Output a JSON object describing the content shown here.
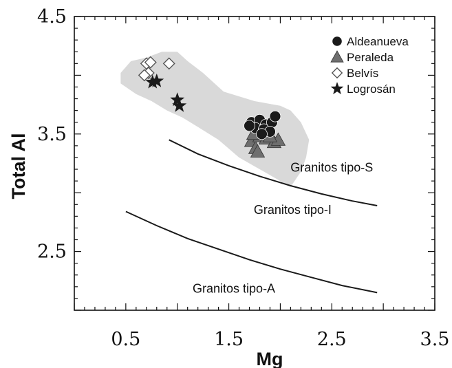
{
  "chart_data": {
    "type": "scatter",
    "xlabel": "Mg",
    "ylabel": "Total Al",
    "xlim": [
      0,
      3.5
    ],
    "ylim": [
      2.0,
      4.5
    ],
    "x_tick_labels": [
      "0.5",
      "1.5",
      "2.5",
      "3.5"
    ],
    "y_tick_labels": [
      "2.5",
      "3.5",
      "4.5"
    ],
    "grid": false,
    "legend_position": "top-right",
    "colors": {
      "shade": "#d9d9d9",
      "marker": "#1a1a1a",
      "outline_marker": "#ffffff",
      "line": "#1a1a1a"
    },
    "series": [
      {
        "name": "Aldeanueva",
        "marker": "circle",
        "points": [
          [
            1.72,
            3.6
          ],
          [
            1.8,
            3.62
          ],
          [
            1.86,
            3.58
          ],
          [
            1.76,
            3.55
          ],
          [
            1.84,
            3.54
          ],
          [
            1.92,
            3.6
          ],
          [
            1.95,
            3.65
          ],
          [
            1.9,
            3.52
          ],
          [
            1.7,
            3.57
          ],
          [
            1.82,
            3.5
          ]
        ]
      },
      {
        "name": "Peraleda",
        "marker": "triangle",
        "points": [
          [
            1.72,
            3.44
          ],
          [
            1.76,
            3.38
          ],
          [
            1.8,
            3.48
          ],
          [
            1.86,
            3.46
          ],
          [
            1.94,
            3.43
          ],
          [
            1.98,
            3.45
          ],
          [
            1.74,
            3.5
          ],
          [
            1.9,
            3.48
          ],
          [
            1.78,
            3.35
          ]
        ]
      },
      {
        "name": "Belvís",
        "marker": "diamond-open",
        "points": [
          [
            0.7,
            4.1
          ],
          [
            0.74,
            4.11
          ],
          [
            0.92,
            4.1
          ],
          [
            0.72,
            4.02
          ],
          [
            0.68,
            4.0
          ]
        ]
      },
      {
        "name": "Logrosán",
        "marker": "star",
        "points": [
          [
            0.76,
            3.94
          ],
          [
            0.8,
            3.95
          ],
          [
            1.0,
            3.79
          ],
          [
            1.02,
            3.74
          ]
        ]
      }
    ],
    "shaded_region": {
      "label": "",
      "polygon": [
        [
          0.45,
          4.02
        ],
        [
          0.55,
          4.12
        ],
        [
          0.7,
          4.15
        ],
        [
          0.85,
          4.2
        ],
        [
          1.0,
          4.2
        ],
        [
          1.1,
          4.12
        ],
        [
          1.25,
          4.02
        ],
        [
          1.45,
          3.86
        ],
        [
          1.75,
          3.78
        ],
        [
          2.0,
          3.74
        ],
        [
          2.1,
          3.7
        ],
        [
          2.2,
          3.6
        ],
        [
          2.28,
          3.45
        ],
        [
          2.25,
          3.3
        ],
        [
          2.2,
          3.18
        ],
        [
          2.1,
          3.05
        ],
        [
          1.9,
          3.15
        ],
        [
          1.6,
          3.3
        ],
        [
          1.4,
          3.45
        ],
        [
          1.2,
          3.56
        ],
        [
          1.05,
          3.64
        ],
        [
          0.9,
          3.7
        ],
        [
          0.75,
          3.78
        ],
        [
          0.6,
          3.84
        ],
        [
          0.45,
          3.93
        ]
      ]
    },
    "boundary_lines": [
      {
        "label": "Granitos tipo-S",
        "points": [
          [
            0.92,
            3.45
          ],
          [
            1.2,
            3.33
          ],
          [
            1.5,
            3.23
          ],
          [
            1.8,
            3.14
          ],
          [
            2.1,
            3.06
          ],
          [
            2.4,
            2.99
          ],
          [
            2.7,
            2.93
          ],
          [
            2.94,
            2.89
          ]
        ]
      },
      {
        "label": "Granitos tipo-I",
        "points": [
          [
            0.5,
            2.84
          ],
          [
            0.8,
            2.72
          ],
          [
            1.1,
            2.61
          ],
          [
            1.4,
            2.52
          ],
          [
            1.7,
            2.43
          ],
          [
            2.0,
            2.35
          ],
          [
            2.3,
            2.28
          ],
          [
            2.6,
            2.21
          ],
          [
            2.94,
            2.15
          ]
        ]
      }
    ],
    "region_labels": [
      {
        "text": "Granitos tipo-S",
        "x": 2.5,
        "y": 3.18
      },
      {
        "text": "Granitos tipo-I",
        "x": 2.12,
        "y": 2.82
      },
      {
        "text": "Granitos tipo-A",
        "x": 1.55,
        "y": 2.15
      }
    ]
  }
}
